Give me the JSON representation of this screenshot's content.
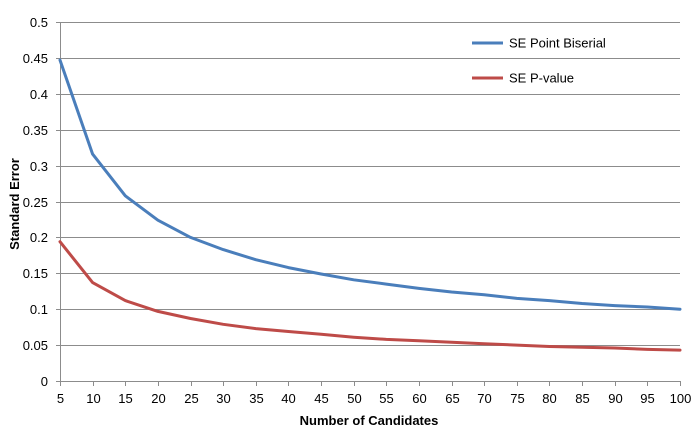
{
  "chart_data": {
    "type": "line",
    "xlabel": "Number of Candidates",
    "ylabel": "Standard Error",
    "x": [
      5,
      10,
      15,
      20,
      25,
      30,
      35,
      40,
      45,
      50,
      55,
      60,
      65,
      70,
      75,
      80,
      85,
      90,
      95,
      100
    ],
    "xlim": [
      5,
      100
    ],
    "ylim": [
      0,
      0.5
    ],
    "x_ticks": [
      "5",
      "10",
      "15",
      "20",
      "25",
      "30",
      "35",
      "40",
      "45",
      "50",
      "55",
      "60",
      "65",
      "70",
      "75",
      "80",
      "85",
      "90",
      "95",
      "100"
    ],
    "y_ticks": [
      "0",
      "0.05",
      "0.1",
      "0.15",
      "0.2",
      "0.25",
      "0.3",
      "0.35",
      "0.4",
      "0.45",
      "0.5"
    ],
    "y_tick_values": [
      0,
      0.05,
      0.1,
      0.15,
      0.2,
      0.25,
      0.3,
      0.35,
      0.4,
      0.45,
      0.5
    ],
    "grid": true,
    "legend_position": "top-right",
    "series": [
      {
        "name": "SE Point Biserial",
        "color": "#4a7ebb",
        "values": [
          0.447,
          0.316,
          0.258,
          0.224,
          0.2,
          0.183,
          0.169,
          0.158,
          0.149,
          0.141,
          0.135,
          0.129,
          0.124,
          0.12,
          0.115,
          0.112,
          0.108,
          0.105,
          0.103,
          0.1
        ]
      },
      {
        "name": "SE P-value",
        "color": "#be4b48",
        "values": [
          0.194,
          0.137,
          0.112,
          0.097,
          0.087,
          0.079,
          0.073,
          0.069,
          0.065,
          0.061,
          0.058,
          0.056,
          0.054,
          0.052,
          0.05,
          0.048,
          0.047,
          0.046,
          0.044,
          0.043
        ]
      }
    ]
  }
}
